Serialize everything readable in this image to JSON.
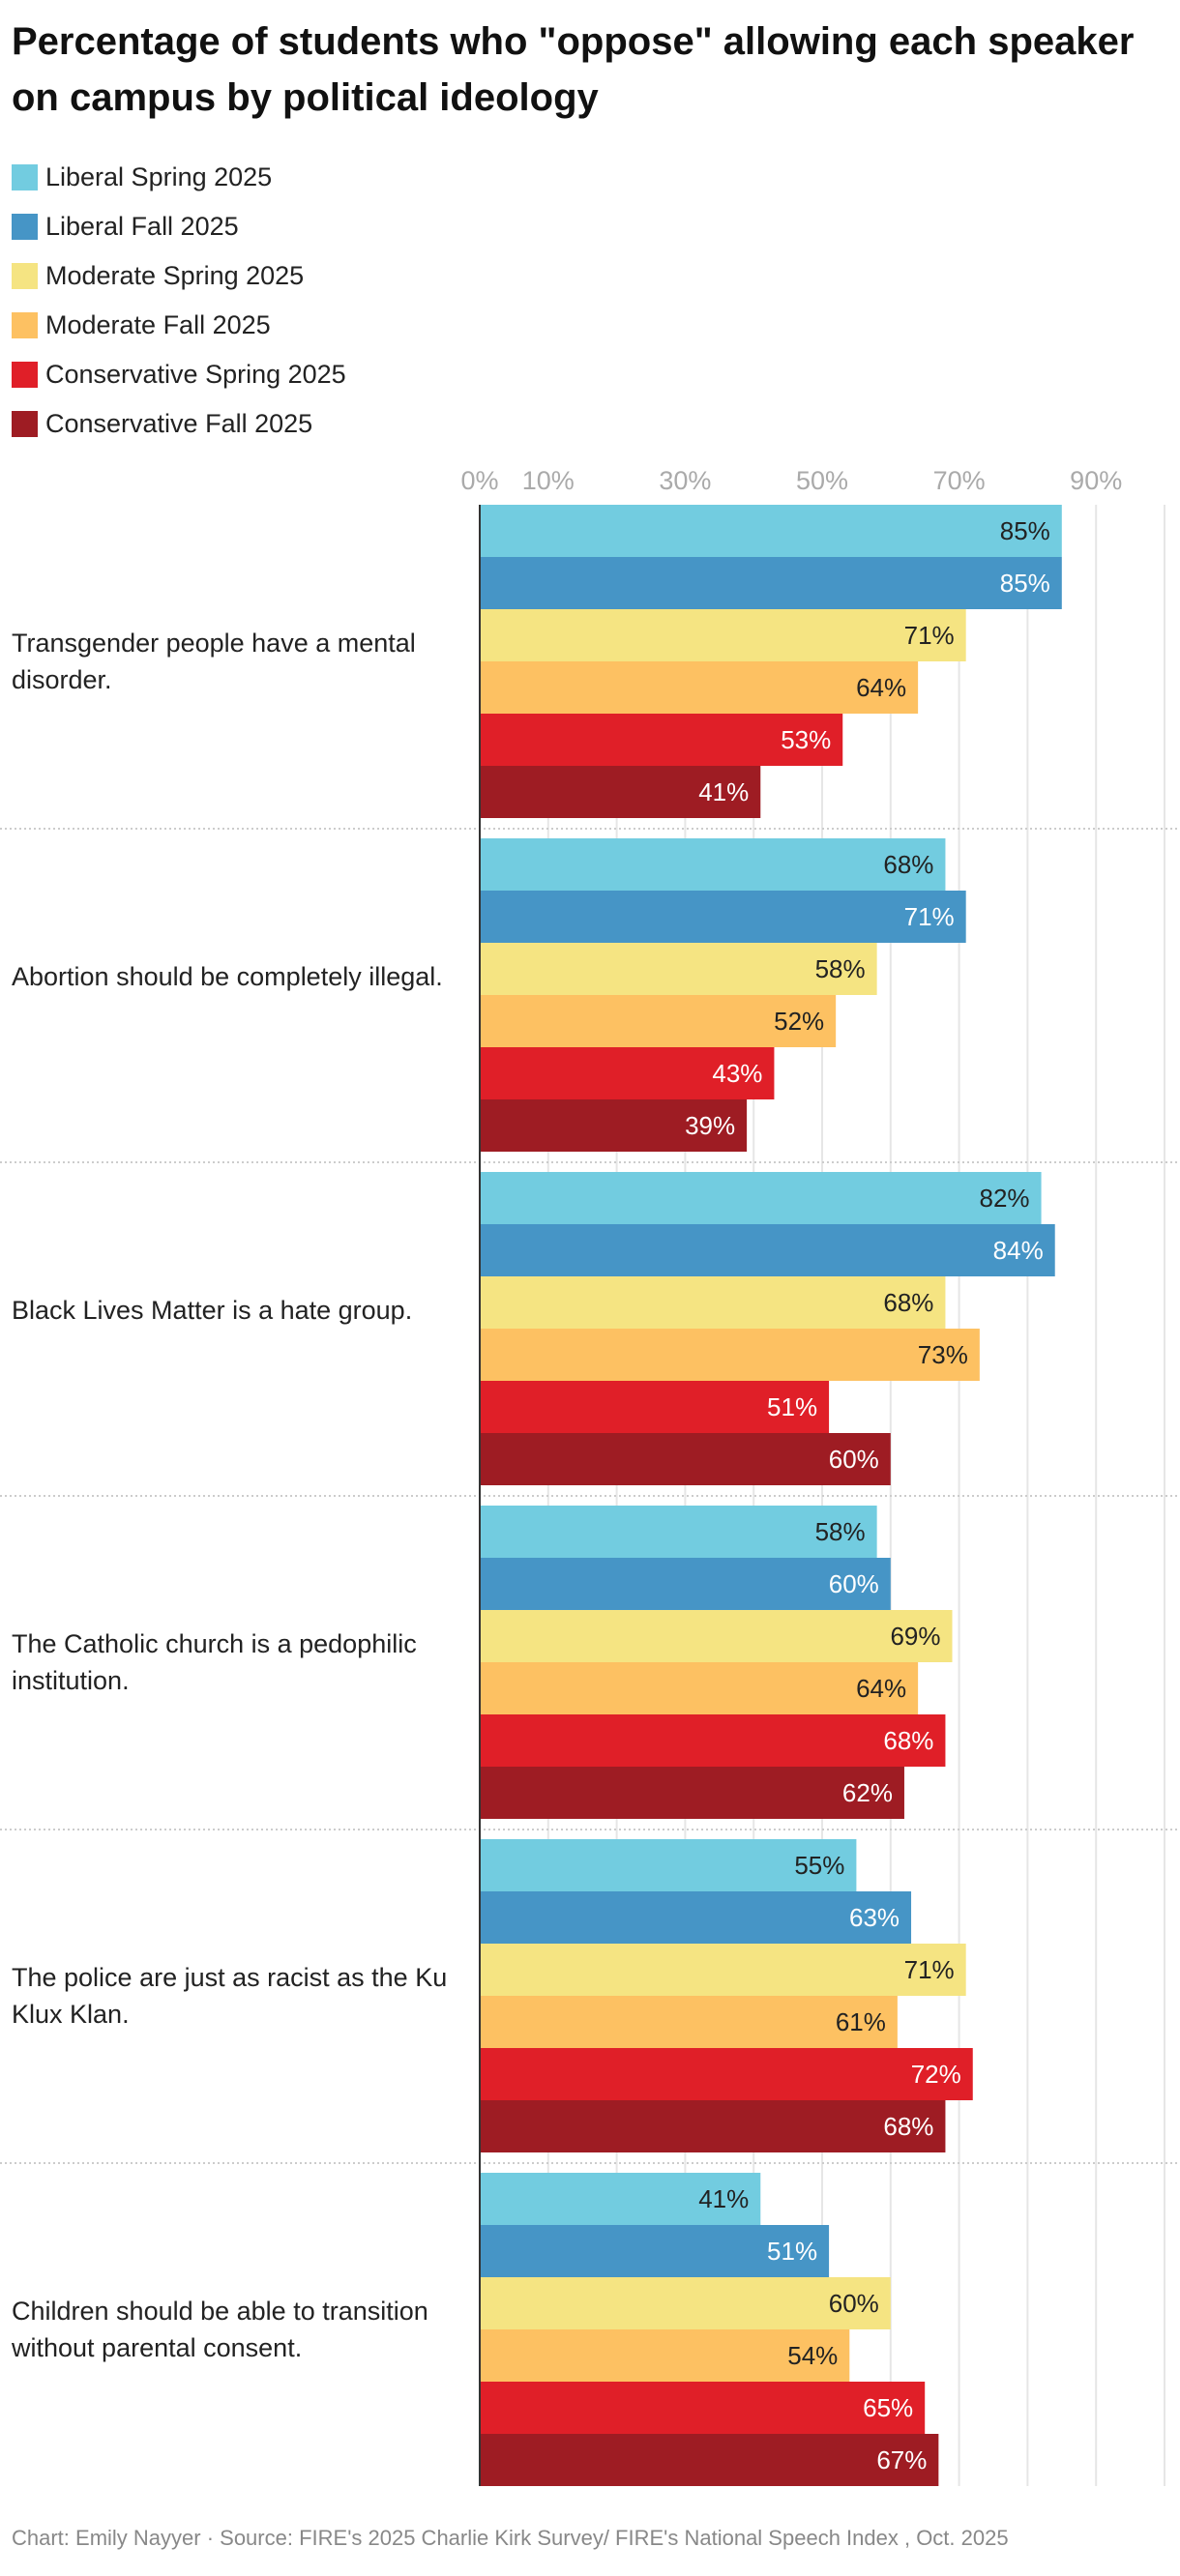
{
  "chart_data": {
    "type": "bar",
    "orientation": "horizontal",
    "title": "Percentage of students who \"oppose\" allowing each speaker on campus by political ideology",
    "categories": [
      "Transgender people have a mental disorder.",
      "Abortion should be completely illegal.",
      "Black Lives Matter is a hate group.",
      "The Catholic church is a pedophilic institution.",
      "The police are just as racist as the Ku Klux Klan.",
      "Children should be able to transition without parental consent."
    ],
    "series": [
      {
        "name": "Liberal Spring 2025",
        "color": "#72cce0",
        "label_color": "#222222",
        "values": [
          85,
          68,
          82,
          58,
          55,
          41
        ]
      },
      {
        "name": "Liberal Fall 2025",
        "color": "#4695c6",
        "label_color": "#ffffff",
        "values": [
          85,
          71,
          84,
          60,
          63,
          51
        ]
      },
      {
        "name": "Moderate Spring 2025",
        "color": "#f5e482",
        "label_color": "#222222",
        "values": [
          71,
          58,
          68,
          69,
          71,
          60
        ]
      },
      {
        "name": "Moderate Fall 2025",
        "color": "#fdc162",
        "label_color": "#222222",
        "values": [
          64,
          52,
          73,
          64,
          61,
          54
        ]
      },
      {
        "name": "Conservative Spring 2025",
        "color": "#e01f28",
        "label_color": "#ffffff",
        "values": [
          53,
          43,
          51,
          68,
          72,
          65
        ]
      },
      {
        "name": "Conservative Fall 2025",
        "color": "#9e1c23",
        "label_color": "#ffffff",
        "values": [
          41,
          39,
          60,
          62,
          68,
          67
        ]
      }
    ],
    "xlim": [
      0,
      100
    ],
    "x_tick_labels": [
      "0%",
      "10%",
      "30%",
      "50%",
      "70%",
      "90%"
    ],
    "x_tick_values": [
      0,
      10,
      30,
      50,
      70,
      90
    ],
    "grid": true,
    "legend_position": "top-left",
    "value_suffix": "%"
  },
  "footer": "Chart: Emily Nayyer  · Source: FIRE's 2025 Charlie Kirk Survey/ FIRE's National Speech Index , Oct. 2025"
}
